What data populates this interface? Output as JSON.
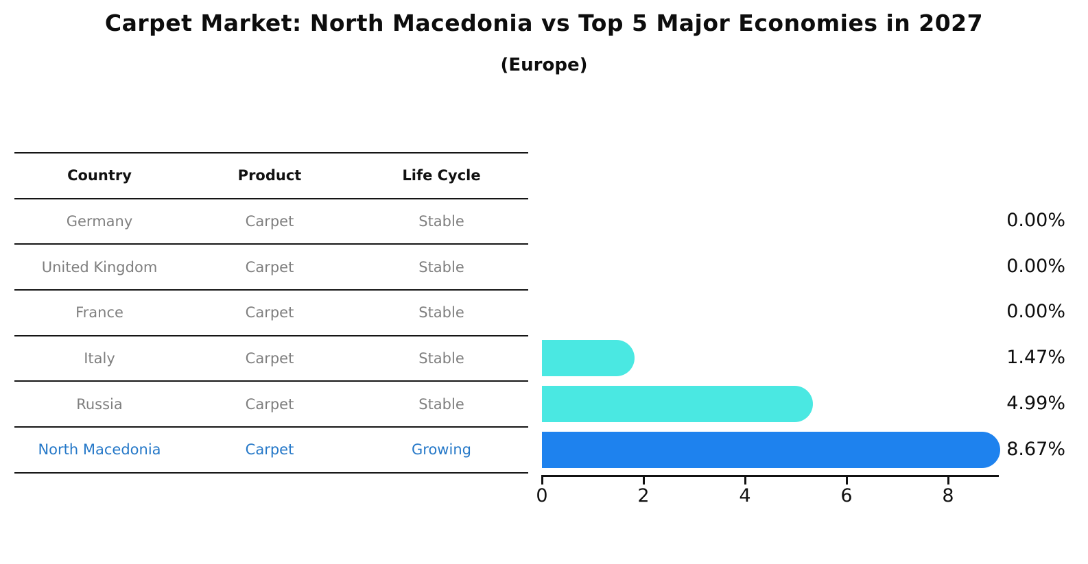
{
  "title": "Carpet Market: North Macedonia vs Top 5 Major Economies in 2027",
  "subtitle": "(Europe)",
  "table": {
    "headers": [
      "Country",
      "Product",
      "Life Cycle"
    ],
    "rows": [
      {
        "country": "Germany",
        "product": "Carpet",
        "life_cycle": "Stable",
        "highlight": false
      },
      {
        "country": "United Kingdom",
        "product": "Carpet",
        "life_cycle": "Stable",
        "highlight": false
      },
      {
        "country": "France",
        "product": "Carpet",
        "life_cycle": "Stable",
        "highlight": false
      },
      {
        "country": "Italy",
        "product": "Carpet",
        "life_cycle": "Stable",
        "highlight": false
      },
      {
        "country": "Russia",
        "product": "Carpet",
        "life_cycle": "Stable",
        "highlight": false
      },
      {
        "country": "North Macedonia",
        "product": "Carpet",
        "life_cycle": "Growing",
        "highlight": true
      }
    ]
  },
  "chart_data": {
    "type": "bar",
    "orientation": "horizontal",
    "title": "Carpet Market: North Macedonia vs Top 5 Major Economies in 2027",
    "subtitle": "(Europe)",
    "categories": [
      "Germany",
      "United Kingdom",
      "France",
      "Italy",
      "Russia",
      "North Macedonia"
    ],
    "values": [
      0.0,
      0.0,
      0.0,
      1.47,
      4.99,
      8.67
    ],
    "value_labels": [
      "0.00%",
      "0.00%",
      "0.00%",
      "1.47%",
      "4.99%",
      "8.67%"
    ],
    "x_ticks": [
      "0",
      "2",
      "4",
      "6",
      "8"
    ],
    "x_tick_values": [
      0,
      2,
      4,
      6,
      8
    ],
    "xlim": [
      0,
      9
    ],
    "grid": false,
    "legend": false,
    "highlighted_category": "North Macedonia",
    "colors": {
      "default_bar": "#4ae8e2",
      "highlight_bar": "#1e82ee",
      "highlight_text": "#2578c8",
      "row_text": "#7f7f7f",
      "axis": "#111111"
    }
  }
}
